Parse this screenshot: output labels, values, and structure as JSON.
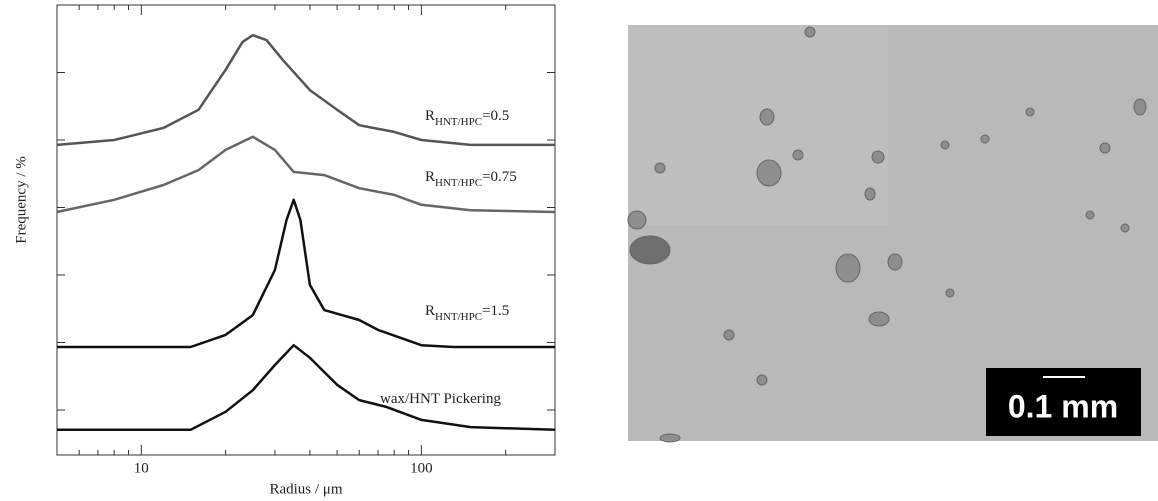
{
  "chart_data": {
    "type": "line",
    "x_label": "Radius / μm",
    "y_label": "Frequency / %",
    "x_log": true,
    "xlim": [
      5,
      300
    ],
    "ylim": [
      0,
      100
    ],
    "xticks": [
      10,
      100
    ],
    "xminor_ticks": [
      5,
      6,
      7,
      8,
      9,
      20,
      30,
      40,
      50,
      60,
      70,
      80,
      90,
      200,
      300
    ],
    "yticks": [
      10,
      25,
      40,
      55,
      70,
      85
    ],
    "series": [
      {
        "name": [
          "R",
          "HNT/HPC",
          "=0.5"
        ],
        "color": "#555555",
        "x": [
          5,
          8,
          12,
          16,
          20,
          23,
          25,
          28,
          32,
          40,
          50,
          60,
          80,
          100,
          150,
          300
        ],
        "values": [
          68.9,
          70,
          72.7,
          76.7,
          85.6,
          91.8,
          93.3,
          92.2,
          87.8,
          81.1,
          76.7,
          73.3,
          71.8,
          70,
          68.9,
          68.9
        ]
      },
      {
        "name": [
          "R",
          "HNT/HPC",
          "=0.75"
        ],
        "color": "#666666",
        "x": [
          5,
          8,
          12,
          16,
          20,
          25,
          30,
          35,
          45,
          60,
          80,
          100,
          150,
          300
        ],
        "values": [
          54,
          56.7,
          60,
          63.3,
          67.8,
          70.7,
          67.8,
          62.9,
          62.2,
          59.3,
          57.8,
          55.6,
          54.4,
          54
        ]
      },
      {
        "name": [
          "R",
          "HNT/HPC",
          "=1.5"
        ],
        "color": "#111111",
        "x": [
          5,
          15,
          20,
          25,
          30,
          33,
          35,
          37,
          40,
          45,
          60,
          70,
          100,
          130,
          300
        ],
        "values": [
          24,
          24,
          26.7,
          31.1,
          41.1,
          52.2,
          56.7,
          52.2,
          37.8,
          32.2,
          30,
          27.8,
          24.4,
          24,
          24
        ]
      },
      {
        "name": [
          "wax/HNT Pickering"
        ],
        "color": "#111111",
        "x": [
          5,
          15,
          20,
          25,
          30,
          35,
          40,
          50,
          60,
          75,
          100,
          150,
          300
        ],
        "values": [
          5.6,
          5.6,
          9.6,
          14.4,
          20,
          24.4,
          21.6,
          15.6,
          12.2,
          10.7,
          7.8,
          6.2,
          5.6
        ]
      }
    ]
  },
  "micrograph": {
    "scale_bar": "0.1 mm"
  }
}
